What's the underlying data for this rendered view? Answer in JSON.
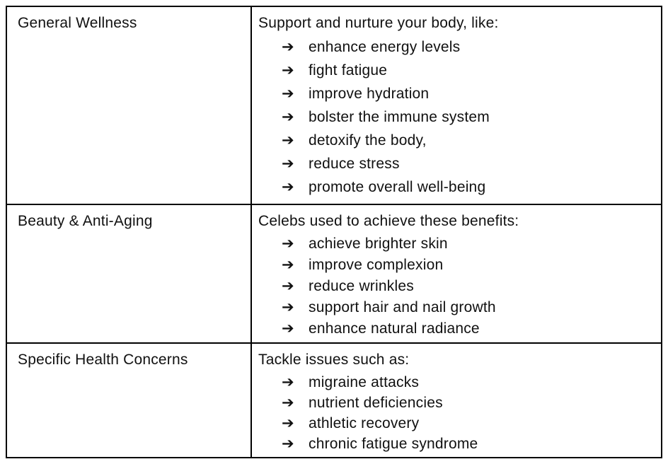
{
  "icons": {
    "arrow_bullet": "➔"
  },
  "colors": {
    "border": "#000000",
    "text": "#111111",
    "background": "#ffffff"
  },
  "table": {
    "rows": [
      {
        "category": "General Wellness",
        "lead": "Support and nurture your body, like:",
        "items": [
          "enhance energy levels",
          "fight fatigue",
          "improve hydration",
          "bolster the immune system",
          "detoxify the body,",
          "reduce stress",
          "promote overall well-being"
        ]
      },
      {
        "category": "Beauty & Anti-Aging",
        "lead": "Celebs used to achieve these benefits:",
        "items": [
          "achieve brighter skin",
          "improve complexion",
          "reduce wrinkles",
          "support hair and nail growth",
          "enhance natural radiance"
        ]
      },
      {
        "category": "Specific Health Concerns",
        "lead": "Tackle issues such as:",
        "items": [
          "migraine attacks",
          "nutrient deficiencies",
          "athletic recovery",
          "chronic fatigue syndrome"
        ]
      }
    ]
  }
}
